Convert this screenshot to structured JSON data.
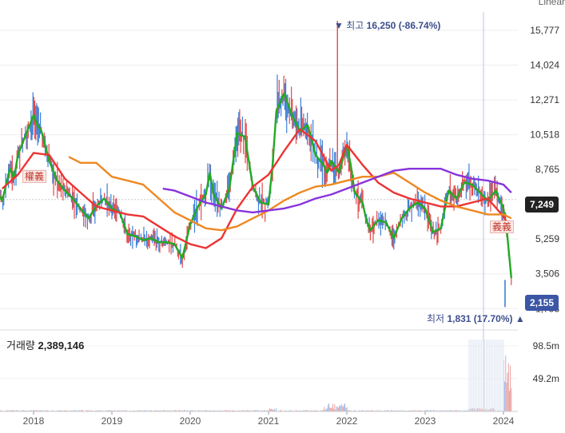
{
  "chart_data": {
    "type": "line",
    "scale_mode": "Linear",
    "y_ticks": [
      "15,777",
      "14,024",
      "12,271",
      "10,518",
      "8,765",
      "5,259",
      "3,506",
      "1,753"
    ],
    "x_ticks": [
      "2018",
      "2019",
      "2020",
      "2021",
      "2022",
      "2023",
      "2024"
    ],
    "ylim": [
      1000,
      16700
    ],
    "high": {
      "label": "최고",
      "value_text": "16,250 (-86.74%)",
      "value": 16250,
      "date": 2021.88
    },
    "low": {
      "label": "최저",
      "value_text": "1,831 (17.70%)",
      "value": 1831,
      "date": 2024.02
    },
    "current_price": {
      "value": 7249,
      "label": "7,249"
    },
    "last_price": {
      "value": 2155,
      "label": "2,155"
    },
    "volume": {
      "label": "거래량",
      "value": "2,389,146",
      "ticks": [
        "98.5m",
        "49.2m"
      ],
      "max": 120
    },
    "series": [
      {
        "color": "#22aa22",
        "x": [
          2017.5,
          2017.6,
          2017.7,
          2017.75,
          2017.8,
          2017.9,
          2018.0,
          2018.05,
          2018.1,
          2018.2,
          2018.3,
          2018.4,
          2018.5,
          2018.6,
          2018.7,
          2018.8,
          2018.9,
          2019.0,
          2019.1,
          2019.2,
          2019.3,
          2019.4,
          2019.5,
          2019.6,
          2019.7,
          2019.8,
          2019.9,
          2020.0,
          2020.1,
          2020.2,
          2020.25,
          2020.3,
          2020.4,
          2020.5,
          2020.6,
          2020.7,
          2020.8,
          2020.9,
          2021.0,
          2021.05,
          2021.1,
          2021.2,
          2021.3,
          2021.4,
          2021.5,
          2021.6,
          2021.7,
          2021.75,
          2021.8,
          2021.9,
          2022.0,
          2022.05,
          2022.1,
          2022.2,
          2022.25,
          2022.3,
          2022.4,
          2022.5,
          2022.6,
          2022.7,
          2022.8,
          2022.9,
          2023.0,
          2023.1,
          2023.2,
          2023.3,
          2023.4,
          2023.5,
          2023.6,
          2023.7,
          2023.8,
          2023.9,
          2024.0,
          2024.05,
          2024.1
        ],
        "y": [
          7800,
          7200,
          8800,
          8300,
          9500,
          10500,
          11500,
          11000,
          10700,
          9200,
          8200,
          7700,
          7300,
          6800,
          6300,
          6900,
          7300,
          6800,
          6600,
          5500,
          5400,
          5200,
          5300,
          5100,
          5100,
          5000,
          4300,
          6000,
          6900,
          7500,
          8600,
          7500,
          6800,
          7800,
          10600,
          10400,
          7900,
          7100,
          7000,
          8900,
          11700,
          12600,
          11500,
          10700,
          11000,
          9500,
          9000,
          8600,
          9200,
          8600,
          10000,
          9000,
          7600,
          7100,
          6200,
          5700,
          6200,
          6100,
          5300,
          6300,
          6800,
          7100,
          6800,
          5600,
          5800,
          7700,
          7300,
          8100,
          8000,
          7600,
          7200,
          7700,
          6800,
          5400,
          3300
        ]
      },
      {
        "color": "#ee3333",
        "x": [
          2017.6,
          2017.8,
          2018.0,
          2018.2,
          2018.4,
          2018.6,
          2018.8,
          2019.0,
          2019.2,
          2019.4,
          2019.6,
          2019.8,
          2020.0,
          2020.2,
          2020.4,
          2020.6,
          2020.8,
          2021.0,
          2021.2,
          2021.4,
          2021.6,
          2021.8,
          2021.9,
          2022.0,
          2022.2,
          2022.4,
          2022.6,
          2022.8,
          2023.0,
          2023.2,
          2023.4,
          2023.6,
          2023.8,
          2024.0,
          2024.1
        ],
        "y": [
          7800,
          8500,
          9600,
          9500,
          8300,
          7600,
          6900,
          6700,
          6500,
          6400,
          5900,
          5400,
          5000,
          4800,
          5300,
          6800,
          7900,
          8500,
          9700,
          10800,
          10200,
          8700,
          9000,
          10000,
          9000,
          8100,
          7600,
          7300,
          7100,
          6900,
          6900,
          7100,
          7300,
          6400,
          5700
        ]
      },
      {
        "color": "#ee8822",
        "x": [
          2018.45,
          2018.6,
          2018.8,
          2019.0,
          2019.2,
          2019.4,
          2019.6,
          2019.8,
          2020.0,
          2020.2,
          2020.4,
          2020.6,
          2020.8,
          2021.0,
          2021.2,
          2021.4,
          2021.6,
          2021.8,
          2022.0,
          2022.2,
          2022.4,
          2022.6,
          2022.8,
          2023.0,
          2023.2,
          2023.4,
          2023.6,
          2023.8,
          2024.0,
          2024.1
        ],
        "y": [
          9400,
          9100,
          9100,
          8400,
          8200,
          8000,
          7300,
          6600,
          6200,
          5800,
          5700,
          5900,
          6300,
          6700,
          7200,
          7600,
          7900,
          8000,
          8200,
          8400,
          8400,
          8600,
          8100,
          7600,
          7200,
          6900,
          6700,
          6500,
          6500,
          6300
        ]
      },
      {
        "color": "#8833dd",
        "x": [
          2019.65,
          2019.8,
          2020.0,
          2020.2,
          2020.4,
          2020.6,
          2020.8,
          2021.0,
          2021.2,
          2021.4,
          2021.6,
          2021.8,
          2022.0,
          2022.2,
          2022.4,
          2022.6,
          2022.8,
          2023.0,
          2023.2,
          2023.4,
          2023.6,
          2023.8,
          2024.0,
          2024.1
        ],
        "y": [
          7800,
          7700,
          7400,
          7100,
          6900,
          6700,
          6600,
          6700,
          6800,
          7000,
          7300,
          7500,
          7800,
          8100,
          8400,
          8700,
          8800,
          8800,
          8800,
          8500,
          8300,
          8200,
          8000,
          7600
        ]
      }
    ]
  }
}
